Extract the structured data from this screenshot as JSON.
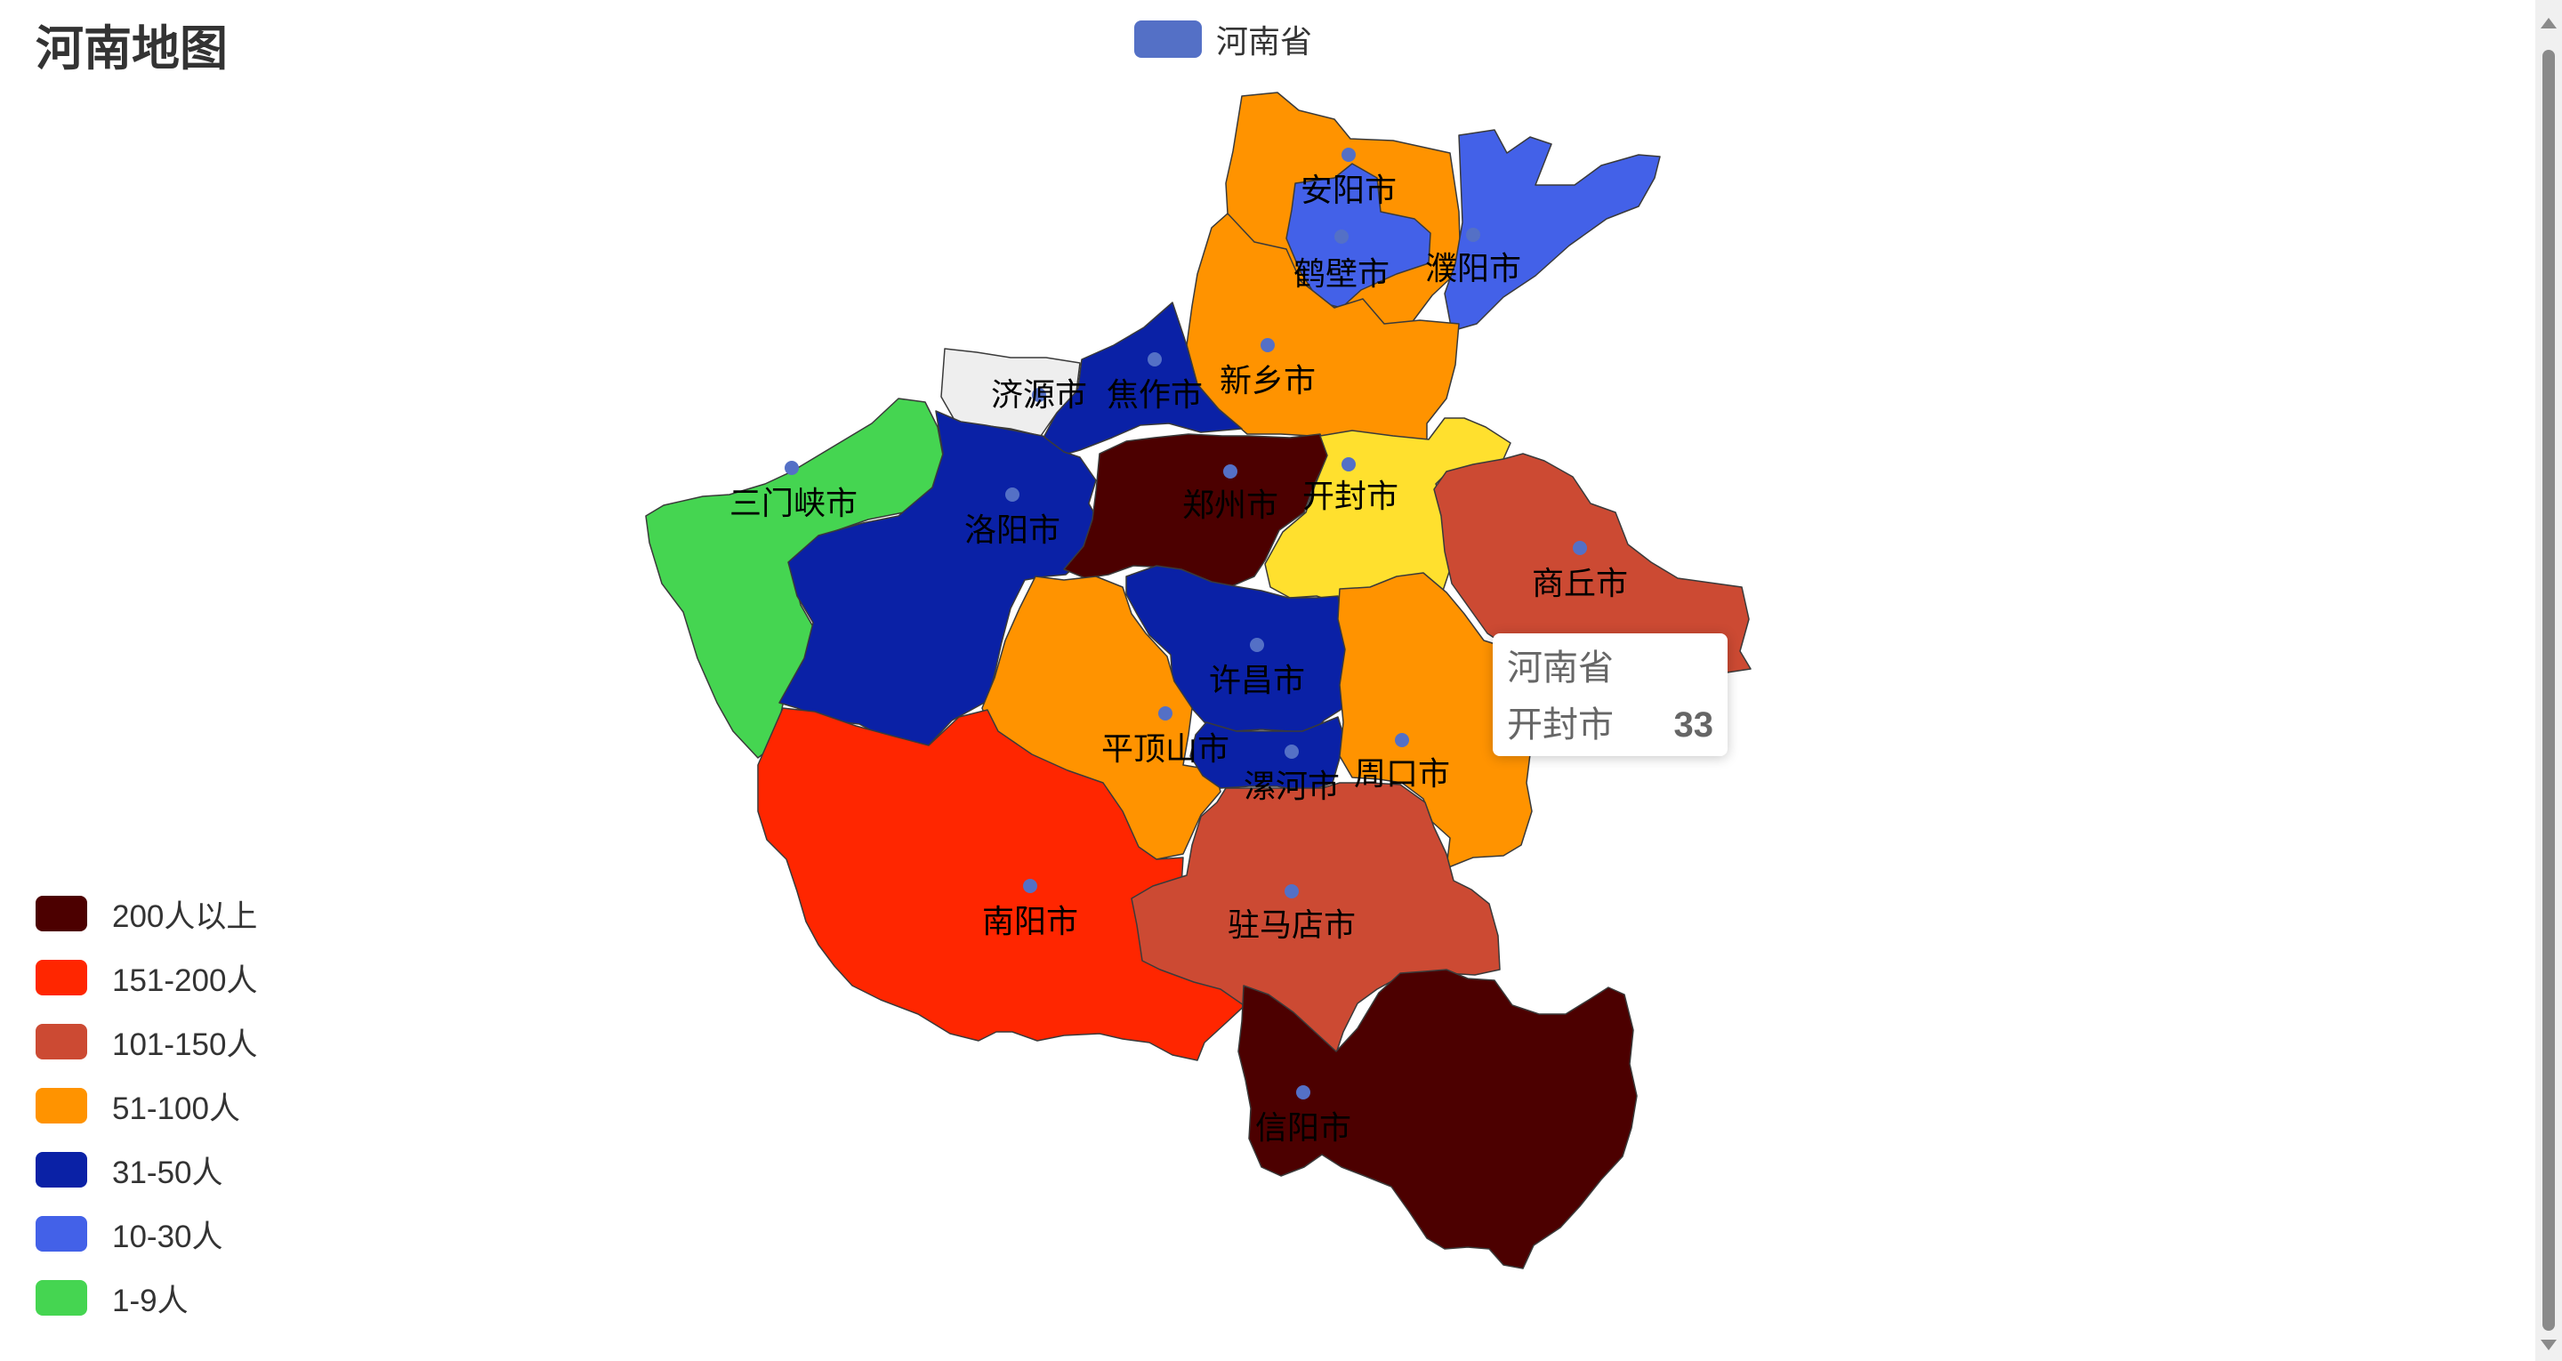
{
  "title": "河南地图",
  "legend": {
    "series_name": "河南省",
    "color": "#5470c6"
  },
  "visual_map": [
    {
      "label": "200人以上",
      "color": "#4c0000"
    },
    {
      "label": "151-200人",
      "color": "#ff2600"
    },
    {
      "label": "101-150人",
      "color": "#cc4a33"
    },
    {
      "label": "51-100人",
      "color": "#ff9300"
    },
    {
      "label": "31-50人",
      "color": "#0a21a6"
    },
    {
      "label": "10-30人",
      "color": "#4361e8"
    },
    {
      "label": "1-9人",
      "color": "#45d551"
    }
  ],
  "chart_data": {
    "type": "map",
    "series": [
      {
        "name": "河南省"
      }
    ],
    "regions": [
      {
        "name": "安阳市",
        "level": "51-100人",
        "color": "#ff9300"
      },
      {
        "name": "鹤壁市",
        "level": "10-30人",
        "color": "#4361e8"
      },
      {
        "name": "濮阳市",
        "level": "10-30人",
        "color": "#4361e8"
      },
      {
        "name": "新乡市",
        "level": "51-100人",
        "color": "#ff9300"
      },
      {
        "name": "焦作市",
        "level": "31-50人",
        "color": "#0a21a6"
      },
      {
        "name": "济源市",
        "level": "",
        "color": "#eeeeee"
      },
      {
        "name": "三门峡市",
        "level": "1-9人",
        "color": "#45d551"
      },
      {
        "name": "洛阳市",
        "level": "31-50人",
        "color": "#0a21a6"
      },
      {
        "name": "郑州市",
        "level": "200人以上",
        "color": "#4c0000"
      },
      {
        "name": "开封市",
        "value": 33,
        "level": "",
        "color": "#ffe02e"
      },
      {
        "name": "商丘市",
        "level": "101-150人",
        "color": "#cc4a33"
      },
      {
        "name": "许昌市",
        "level": "31-50人",
        "color": "#0a21a6"
      },
      {
        "name": "平顶山市",
        "level": "51-100人",
        "color": "#ff9300"
      },
      {
        "name": "漯河市",
        "level": "31-50人",
        "color": "#0a21a6"
      },
      {
        "name": "周口市",
        "level": "51-100人",
        "color": "#ff9300"
      },
      {
        "name": "南阳市",
        "level": "151-200人",
        "color": "#ff2600"
      },
      {
        "name": "驻马店市",
        "level": "101-150人",
        "color": "#cc4a33"
      },
      {
        "name": "信阳市",
        "level": "200人以上",
        "color": "#4c0000"
      }
    ]
  },
  "tooltip": {
    "title": "河南省",
    "name": "开封市",
    "value": "33"
  }
}
